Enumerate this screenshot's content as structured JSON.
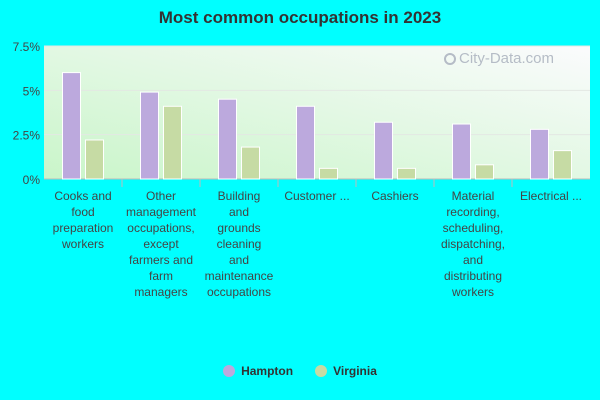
{
  "title": "Most common occupations in 2023",
  "watermark": "City-Data.com",
  "colors": {
    "hampton": "#bca9dd",
    "virginia": "#c6dba4",
    "background": "#00ffff",
    "text": "#444444"
  },
  "chart_data": {
    "type": "bar",
    "title": "Most common occupations in 2023",
    "categories": [
      "Cooks and food preparation workers",
      "Other management occupations, except farmers and farm managers",
      "Building and grounds cleaning and maintenance occupations",
      "Customer ...",
      "Cashiers",
      "Material recording, scheduling, dispatching, and distributing workers",
      "Electrical ..."
    ],
    "category_lines": [
      [
        "Cooks and",
        "food",
        "preparation",
        "workers"
      ],
      [
        "Other",
        "management",
        "occupations,",
        "except",
        "farmers and",
        "farm",
        "managers"
      ],
      [
        "Building",
        "and",
        "grounds",
        "cleaning",
        "and",
        "maintenance",
        "occupations"
      ],
      [
        "Customer ..."
      ],
      [
        "Cashiers"
      ],
      [
        "Material",
        "recording,",
        "scheduling,",
        "dispatching,",
        "and",
        "distributing",
        "workers"
      ],
      [
        "Electrical ..."
      ]
    ],
    "series": [
      {
        "name": "Hampton",
        "values": [
          6.0,
          4.9,
          4.5,
          4.1,
          3.2,
          3.1,
          2.8
        ]
      },
      {
        "name": "Virginia",
        "values": [
          2.2,
          4.1,
          1.8,
          0.6,
          0.6,
          0.8,
          1.6
        ]
      }
    ],
    "yticks": [
      "0%",
      "2.5%",
      "5%",
      "7.5%"
    ],
    "ytick_values": [
      0,
      2.5,
      5,
      7.5
    ],
    "ylim": [
      0,
      7.5
    ],
    "legend_position": "bottom",
    "grid": true
  }
}
